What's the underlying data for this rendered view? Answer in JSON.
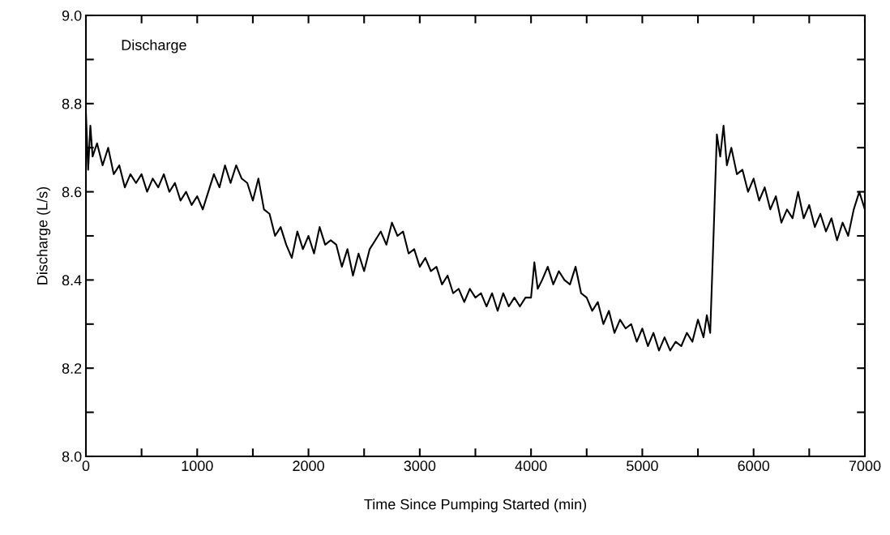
{
  "chart_data": {
    "type": "line",
    "xlabel": "Time Since Pumping Started (min)",
    "ylabel": "Discharge (L/s)",
    "annotations": [
      "Discharge"
    ],
    "xlim": [
      0,
      7000
    ],
    "ylim": [
      8.0,
      9.0
    ],
    "xticks": [
      0,
      {
        "value": 500,
        "label": null
      },
      1000,
      {
        "value": 1500,
        "label": null
      },
      2000,
      {
        "value": 2500,
        "label": null
      },
      3000,
      {
        "value": 3500,
        "label": null
      },
      4000,
      {
        "value": 4500,
        "label": null
      },
      5000,
      {
        "value": 5500,
        "label": null
      },
      6000,
      {
        "value": 6500,
        "label": null
      },
      7000
    ],
    "yticks": [
      {
        "value": 8.0,
        "label": "8.0"
      },
      {
        "value": 8.1,
        "label": null
      },
      8.2,
      {
        "value": 8.3,
        "label": null
      },
      8.4,
      {
        "value": 8.5,
        "label": null
      },
      8.6,
      {
        "value": 8.7,
        "label": null
      },
      8.8,
      {
        "value": 8.9,
        "label": null
      },
      {
        "value": 9.0,
        "label": "9.0"
      }
    ],
    "grid": false,
    "marker": "none",
    "line_style": "solid",
    "x": [
      0,
      20,
      40,
      60,
      100,
      150,
      200,
      250,
      300,
      350,
      400,
      450,
      500,
      550,
      600,
      650,
      700,
      750,
      800,
      850,
      900,
      950,
      1000,
      1050,
      1100,
      1150,
      1200,
      1250,
      1300,
      1350,
      1400,
      1450,
      1500,
      1550,
      1600,
      1650,
      1700,
      1750,
      1800,
      1850,
      1900,
      1950,
      2000,
      2050,
      2100,
      2150,
      2200,
      2250,
      2300,
      2350,
      2400,
      2450,
      2500,
      2550,
      2600,
      2650,
      2700,
      2750,
      2800,
      2850,
      2900,
      2950,
      3000,
      3050,
      3100,
      3150,
      3200,
      3250,
      3300,
      3350,
      3400,
      3450,
      3500,
      3550,
      3600,
      3650,
      3700,
      3750,
      3800,
      3850,
      3900,
      3950,
      4000,
      4030,
      4060,
      4100,
      4150,
      4200,
      4250,
      4300,
      4350,
      4400,
      4450,
      4500,
      4550,
      4600,
      4650,
      4700,
      4750,
      4800,
      4850,
      4900,
      4950,
      5000,
      5050,
      5100,
      5150,
      5200,
      5250,
      5300,
      5350,
      5400,
      5450,
      5500,
      5550,
      5580,
      5610,
      5640,
      5670,
      5700,
      5730,
      5760,
      5800,
      5850,
      5900,
      5950,
      6000,
      6050,
      6100,
      6150,
      6200,
      6250,
      6300,
      6350,
      6400,
      6450,
      6500,
      6550,
      6600,
      6650,
      6700,
      6750,
      6800,
      6850,
      6900,
      6950,
      7000
    ],
    "series": [
      {
        "color": "#000000",
        "values": [
          8.78,
          8.65,
          8.75,
          8.68,
          8.71,
          8.66,
          8.7,
          8.64,
          8.66,
          8.61,
          8.64,
          8.62,
          8.64,
          8.6,
          8.63,
          8.61,
          8.64,
          8.6,
          8.62,
          8.58,
          8.6,
          8.57,
          8.59,
          8.56,
          8.6,
          8.64,
          8.61,
          8.66,
          8.62,
          8.66,
          8.63,
          8.62,
          8.58,
          8.63,
          8.56,
          8.55,
          8.5,
          8.52,
          8.48,
          8.45,
          8.51,
          8.47,
          8.5,
          8.46,
          8.52,
          8.48,
          8.49,
          8.48,
          8.43,
          8.47,
          8.41,
          8.46,
          8.42,
          8.47,
          8.49,
          8.51,
          8.48,
          8.53,
          8.5,
          8.51,
          8.46,
          8.47,
          8.43,
          8.45,
          8.42,
          8.43,
          8.39,
          8.41,
          8.37,
          8.38,
          8.35,
          8.38,
          8.36,
          8.37,
          8.34,
          8.37,
          8.33,
          8.37,
          8.34,
          8.36,
          8.34,
          8.36,
          8.36,
          8.44,
          8.38,
          8.4,
          8.43,
          8.39,
          8.42,
          8.4,
          8.39,
          8.43,
          8.37,
          8.36,
          8.33,
          8.35,
          8.3,
          8.33,
          8.28,
          8.31,
          8.29,
          8.3,
          8.26,
          8.29,
          8.25,
          8.28,
          8.24,
          8.27,
          8.24,
          8.26,
          8.25,
          8.28,
          8.26,
          8.31,
          8.27,
          8.32,
          8.28,
          8.5,
          8.73,
          8.68,
          8.75,
          8.66,
          8.7,
          8.64,
          8.65,
          8.6,
          8.63,
          8.58,
          8.61,
          8.56,
          8.59,
          8.53,
          8.56,
          8.54,
          8.6,
          8.54,
          8.57,
          8.52,
          8.55,
          8.51,
          8.54,
          8.49,
          8.53,
          8.5,
          8.56,
          8.6,
          8.56
        ]
      }
    ]
  }
}
